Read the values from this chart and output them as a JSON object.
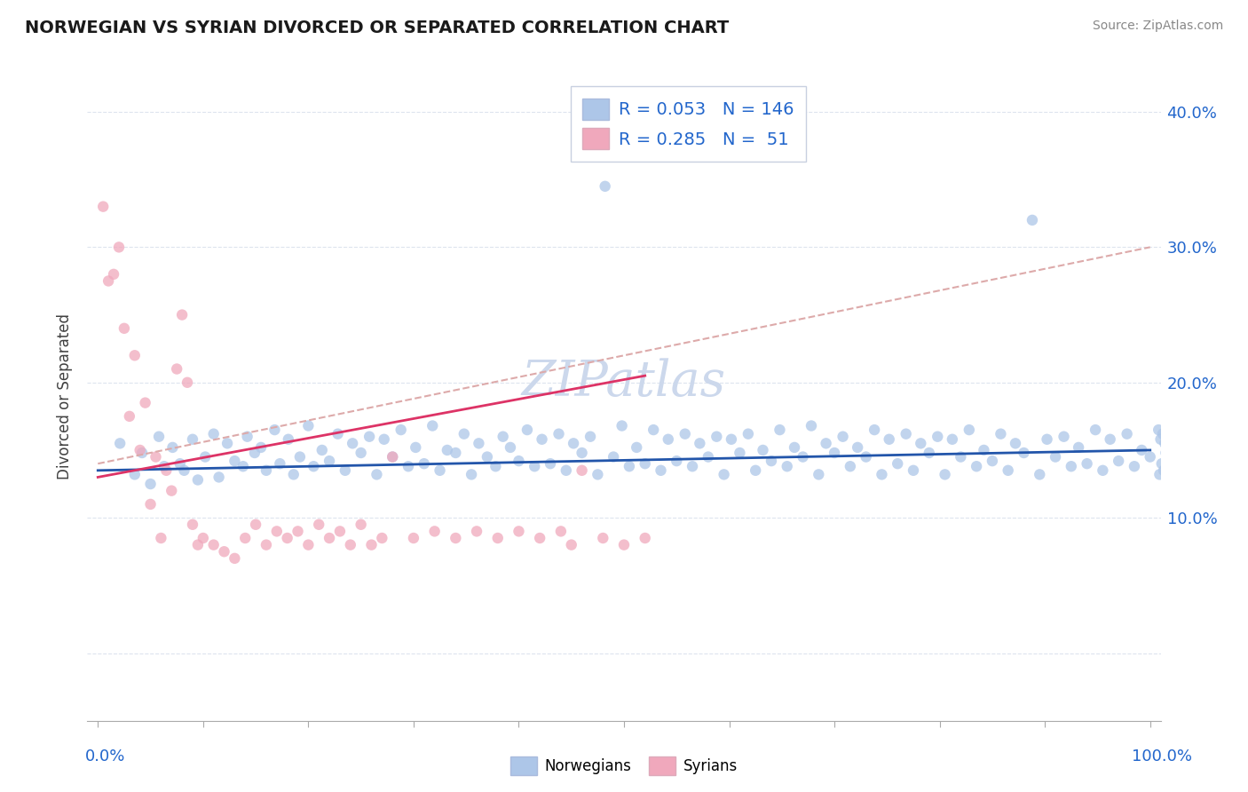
{
  "title": "NORWEGIAN VS SYRIAN DIVORCED OR SEPARATED CORRELATION CHART",
  "source_text": "Source: ZipAtlas.com",
  "ylabel": "Divorced or Separated",
  "r_norwegian": 0.053,
  "n_norwegian": 146,
  "r_syrian": 0.285,
  "n_syrian": 51,
  "norwegian_color": "#adc6e8",
  "syrian_color": "#f0a8bc",
  "trend_norwegian_color": "#2255aa",
  "trend_syrian_color": "#dd3366",
  "trend_dashed_color": "#ddaaaa",
  "background_color": "#ffffff",
  "grid_color": "#dde4ee",
  "watermark_color": "#ccd8ec",
  "title_color": "#1a1a1a",
  "legend_color": "#2266cc",
  "xlim": [
    -1,
    101
  ],
  "ylim": [
    -5,
    43
  ],
  "yticks": [
    0,
    10,
    20,
    30,
    40
  ],
  "ytick_labels": [
    "",
    "10.0%",
    "20.0%",
    "30.0%",
    "40.0%"
  ],
  "nor_x": [
    2.1,
    3.5,
    4.2,
    5.0,
    5.8,
    6.3,
    7.1,
    7.8,
    8.2,
    9.0,
    9.5,
    10.2,
    11.0,
    11.5,
    12.3,
    13.0,
    13.8,
    14.2,
    14.9,
    15.5,
    16.0,
    16.8,
    17.3,
    18.1,
    18.6,
    19.2,
    20.0,
    20.5,
    21.3,
    22.0,
    22.8,
    23.5,
    24.2,
    25.0,
    25.8,
    26.5,
    27.2,
    28.0,
    28.8,
    29.5,
    30.2,
    31.0,
    31.8,
    32.5,
    33.2,
    34.0,
    34.8,
    35.5,
    36.2,
    37.0,
    37.8,
    38.5,
    39.2,
    40.0,
    40.8,
    41.5,
    42.2,
    43.0,
    43.8,
    44.5,
    45.2,
    46.0,
    46.8,
    47.5,
    48.2,
    49.0,
    49.8,
    50.5,
    51.2,
    52.0,
    52.8,
    53.5,
    54.2,
    55.0,
    55.8,
    56.5,
    57.2,
    58.0,
    58.8,
    59.5,
    60.2,
    61.0,
    61.8,
    62.5,
    63.2,
    64.0,
    64.8,
    65.5,
    66.2,
    67.0,
    67.8,
    68.5,
    69.2,
    70.0,
    70.8,
    71.5,
    72.2,
    73.0,
    73.8,
    74.5,
    75.2,
    76.0,
    76.8,
    77.5,
    78.2,
    79.0,
    79.8,
    80.5,
    81.2,
    82.0,
    82.8,
    83.5,
    84.2,
    85.0,
    85.8,
    86.5,
    87.2,
    88.0,
    88.8,
    89.5,
    90.2,
    91.0,
    91.8,
    92.5,
    93.2,
    94.0,
    94.8,
    95.5,
    96.2,
    97.0,
    97.8,
    98.5,
    99.2,
    100.0,
    100.8,
    100.9,
    101.0,
    101.1,
    101.2,
    101.3,
    101.4,
    101.5,
    101.6,
    101.7
  ],
  "nor_y": [
    15.5,
    13.2,
    14.8,
    12.5,
    16.0,
    13.8,
    15.2,
    14.0,
    13.5,
    15.8,
    12.8,
    14.5,
    16.2,
    13.0,
    15.5,
    14.2,
    13.8,
    16.0,
    14.8,
    15.2,
    13.5,
    16.5,
    14.0,
    15.8,
    13.2,
    14.5,
    16.8,
    13.8,
    15.0,
    14.2,
    16.2,
    13.5,
    15.5,
    14.8,
    16.0,
    13.2,
    15.8,
    14.5,
    16.5,
    13.8,
    15.2,
    14.0,
    16.8,
    13.5,
    15.0,
    14.8,
    16.2,
    13.2,
    15.5,
    14.5,
    13.8,
    16.0,
    15.2,
    14.2,
    16.5,
    13.8,
    15.8,
    14.0,
    16.2,
    13.5,
    15.5,
    14.8,
    16.0,
    13.2,
    34.5,
    14.5,
    16.8,
    13.8,
    15.2,
    14.0,
    16.5,
    13.5,
    15.8,
    14.2,
    16.2,
    13.8,
    15.5,
    14.5,
    16.0,
    13.2,
    15.8,
    14.8,
    16.2,
    13.5,
    15.0,
    14.2,
    16.5,
    13.8,
    15.2,
    14.5,
    16.8,
    13.2,
    15.5,
    14.8,
    16.0,
    13.8,
    15.2,
    14.5,
    16.5,
    13.2,
    15.8,
    14.0,
    16.2,
    13.5,
    15.5,
    14.8,
    16.0,
    13.2,
    15.8,
    14.5,
    16.5,
    13.8,
    15.0,
    14.2,
    16.2,
    13.5,
    15.5,
    14.8,
    32.0,
    13.2,
    15.8,
    14.5,
    16.0,
    13.8,
    15.2,
    14.0,
    16.5,
    13.5,
    15.8,
    14.2,
    16.2,
    13.8,
    15.0,
    14.5,
    16.5,
    13.2,
    15.8,
    14.0,
    16.2,
    13.5,
    15.5,
    14.8,
    16.0,
    13.2
  ],
  "syr_x": [
    0.5,
    1.0,
    1.5,
    2.0,
    2.5,
    3.0,
    3.5,
    4.0,
    4.5,
    5.0,
    5.5,
    6.0,
    6.5,
    7.0,
    7.5,
    8.0,
    8.5,
    9.0,
    9.5,
    10.0,
    11.0,
    12.0,
    13.0,
    14.0,
    15.0,
    16.0,
    17.0,
    18.0,
    19.0,
    20.0,
    21.0,
    22.0,
    23.0,
    24.0,
    25.0,
    26.0,
    27.0,
    28.0,
    30.0,
    32.0,
    34.0,
    36.0,
    38.0,
    40.0,
    42.0,
    44.0,
    45.0,
    46.0,
    48.0,
    50.0,
    52.0
  ],
  "syr_y": [
    33.0,
    27.5,
    28.0,
    30.0,
    24.0,
    17.5,
    22.0,
    15.0,
    18.5,
    11.0,
    14.5,
    8.5,
    13.5,
    12.0,
    21.0,
    25.0,
    20.0,
    9.5,
    8.0,
    8.5,
    8.0,
    7.5,
    7.0,
    8.5,
    9.5,
    8.0,
    9.0,
    8.5,
    9.0,
    8.0,
    9.5,
    8.5,
    9.0,
    8.0,
    9.5,
    8.0,
    8.5,
    14.5,
    8.5,
    9.0,
    8.5,
    9.0,
    8.5,
    9.0,
    8.5,
    9.0,
    8.0,
    13.5,
    8.5,
    8.0,
    8.5
  ],
  "nor_trend": [
    0.0,
    100.0,
    13.5,
    15.0
  ],
  "syr_trend": [
    0.0,
    52.0,
    13.0,
    20.5
  ],
  "dashed_trend": [
    0.0,
    100.0,
    14.0,
    30.0
  ]
}
